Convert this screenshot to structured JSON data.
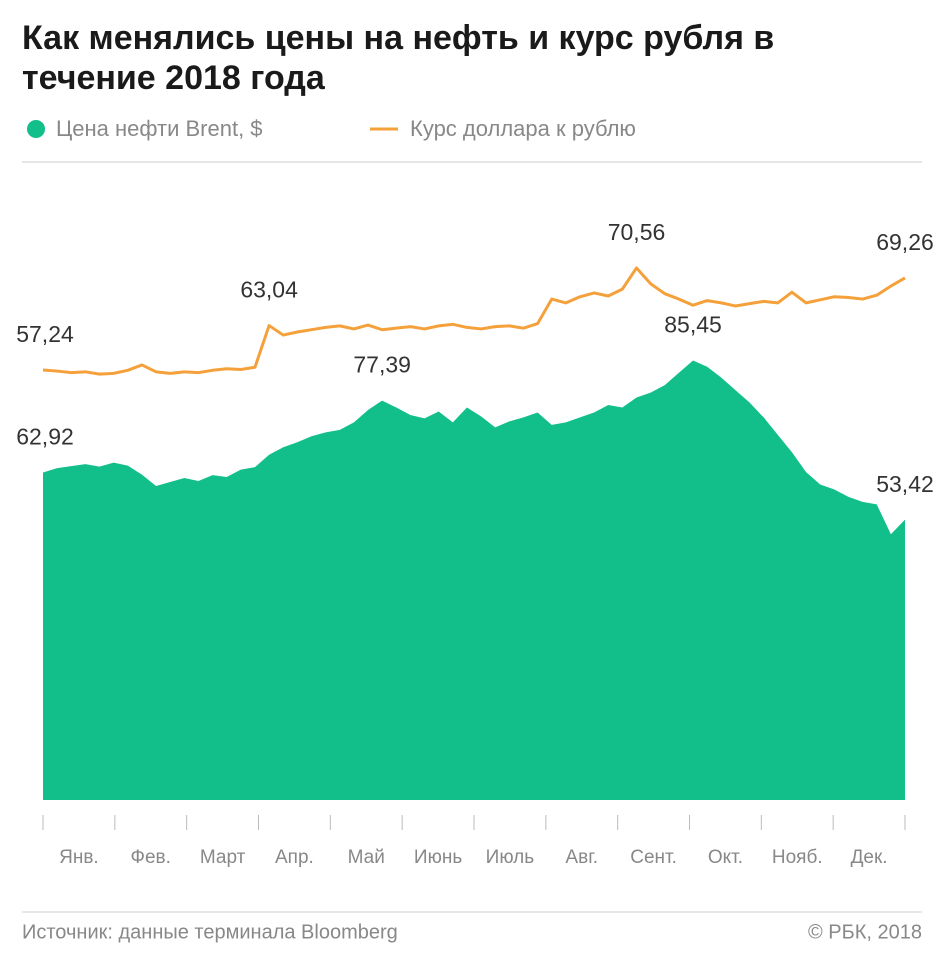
{
  "chart_data": {
    "type": "area-line",
    "title": "Как менялись цены на нефть и курс рубля в течение 2018 года",
    "x_labels": [
      "Янв.",
      "Фев.",
      "Март",
      "Апр.",
      "Май",
      "Июнь",
      "Июль",
      "Авг.",
      "Сент.",
      "Окт.",
      "Нояб.",
      "Дек."
    ],
    "ylim": [
      -3,
      123.8
    ],
    "y2lim": [
      1.1,
      83.35
    ],
    "series": [
      {
        "name": "Цена нефти Brent, $",
        "color": "#12bf8b",
        "type": "area",
        "values": [
          62.92,
          63.8,
          64.2,
          64.6,
          64.1,
          64.9,
          64.3,
          62.5,
          60.2,
          61.0,
          61.8,
          61.2,
          62.4,
          62.0,
          63.5,
          64.0,
          66.5,
          68.0,
          69.0,
          70.2,
          71.0,
          71.5,
          73.0,
          75.5,
          77.39,
          76.0,
          74.5,
          73.8,
          75.2,
          73.0,
          76.0,
          74.2,
          72.0,
          73.2,
          74.0,
          75.0,
          72.5,
          73.0,
          74.0,
          75.0,
          76.5,
          76.0,
          78.0,
          79.0,
          80.5,
          83.0,
          85.45,
          84.2,
          82.0,
          79.5,
          77.0,
          74.0,
          70.5,
          67.0,
          63.0,
          60.5,
          59.5,
          58.0,
          57.0,
          56.5,
          50.5,
          53.42
        ],
        "value_labels": [
          "62,92",
          null,
          null,
          null,
          null,
          null,
          null,
          null,
          null,
          null,
          null,
          null,
          null,
          null,
          null,
          null,
          null,
          null,
          null,
          null,
          null,
          null,
          null,
          null,
          "77,39",
          null,
          null,
          null,
          null,
          null,
          null,
          null,
          null,
          null,
          null,
          null,
          null,
          null,
          null,
          null,
          null,
          null,
          null,
          null,
          null,
          null,
          "85,45",
          null,
          null,
          null,
          null,
          null,
          null,
          null,
          null,
          null,
          null,
          null,
          null,
          null,
          null,
          "53,42"
        ]
      },
      {
        "name": "Курс доллара к рублю",
        "color": "#f5a13b",
        "type": "line",
        "axis": "y2",
        "values": [
          57.24,
          57.1,
          56.9,
          57.0,
          56.7,
          56.8,
          57.2,
          57.9,
          57.0,
          56.8,
          57.0,
          56.9,
          57.2,
          57.4,
          57.3,
          57.6,
          63.04,
          61.8,
          62.2,
          62.5,
          62.8,
          63.0,
          62.6,
          63.1,
          62.5,
          62.7,
          62.9,
          62.6,
          63.0,
          63.2,
          62.8,
          62.6,
          62.9,
          63.0,
          62.7,
          63.3,
          66.5,
          66.0,
          66.8,
          67.3,
          66.9,
          67.8,
          70.56,
          68.5,
          67.2,
          66.5,
          65.7,
          66.3,
          66.0,
          65.6,
          65.9,
          66.2,
          66.0,
          67.4,
          66.0,
          66.4,
          66.8,
          66.7,
          66.5,
          67.0,
          68.2,
          69.26
        ],
        "value_labels": [
          "57,24",
          null,
          null,
          null,
          null,
          null,
          null,
          null,
          null,
          null,
          null,
          null,
          null,
          null,
          null,
          null,
          "63,04",
          null,
          null,
          null,
          null,
          null,
          null,
          null,
          null,
          null,
          null,
          null,
          null,
          null,
          null,
          null,
          null,
          null,
          null,
          null,
          null,
          null,
          null,
          null,
          null,
          null,
          "70,56",
          null,
          null,
          null,
          null,
          null,
          null,
          null,
          null,
          null,
          null,
          null,
          null,
          null,
          null,
          null,
          null,
          null,
          null,
          "69,26"
        ]
      }
    ],
    "source": "Источник: данные терминала Bloomberg",
    "copyright": "© РБК, 2018"
  }
}
